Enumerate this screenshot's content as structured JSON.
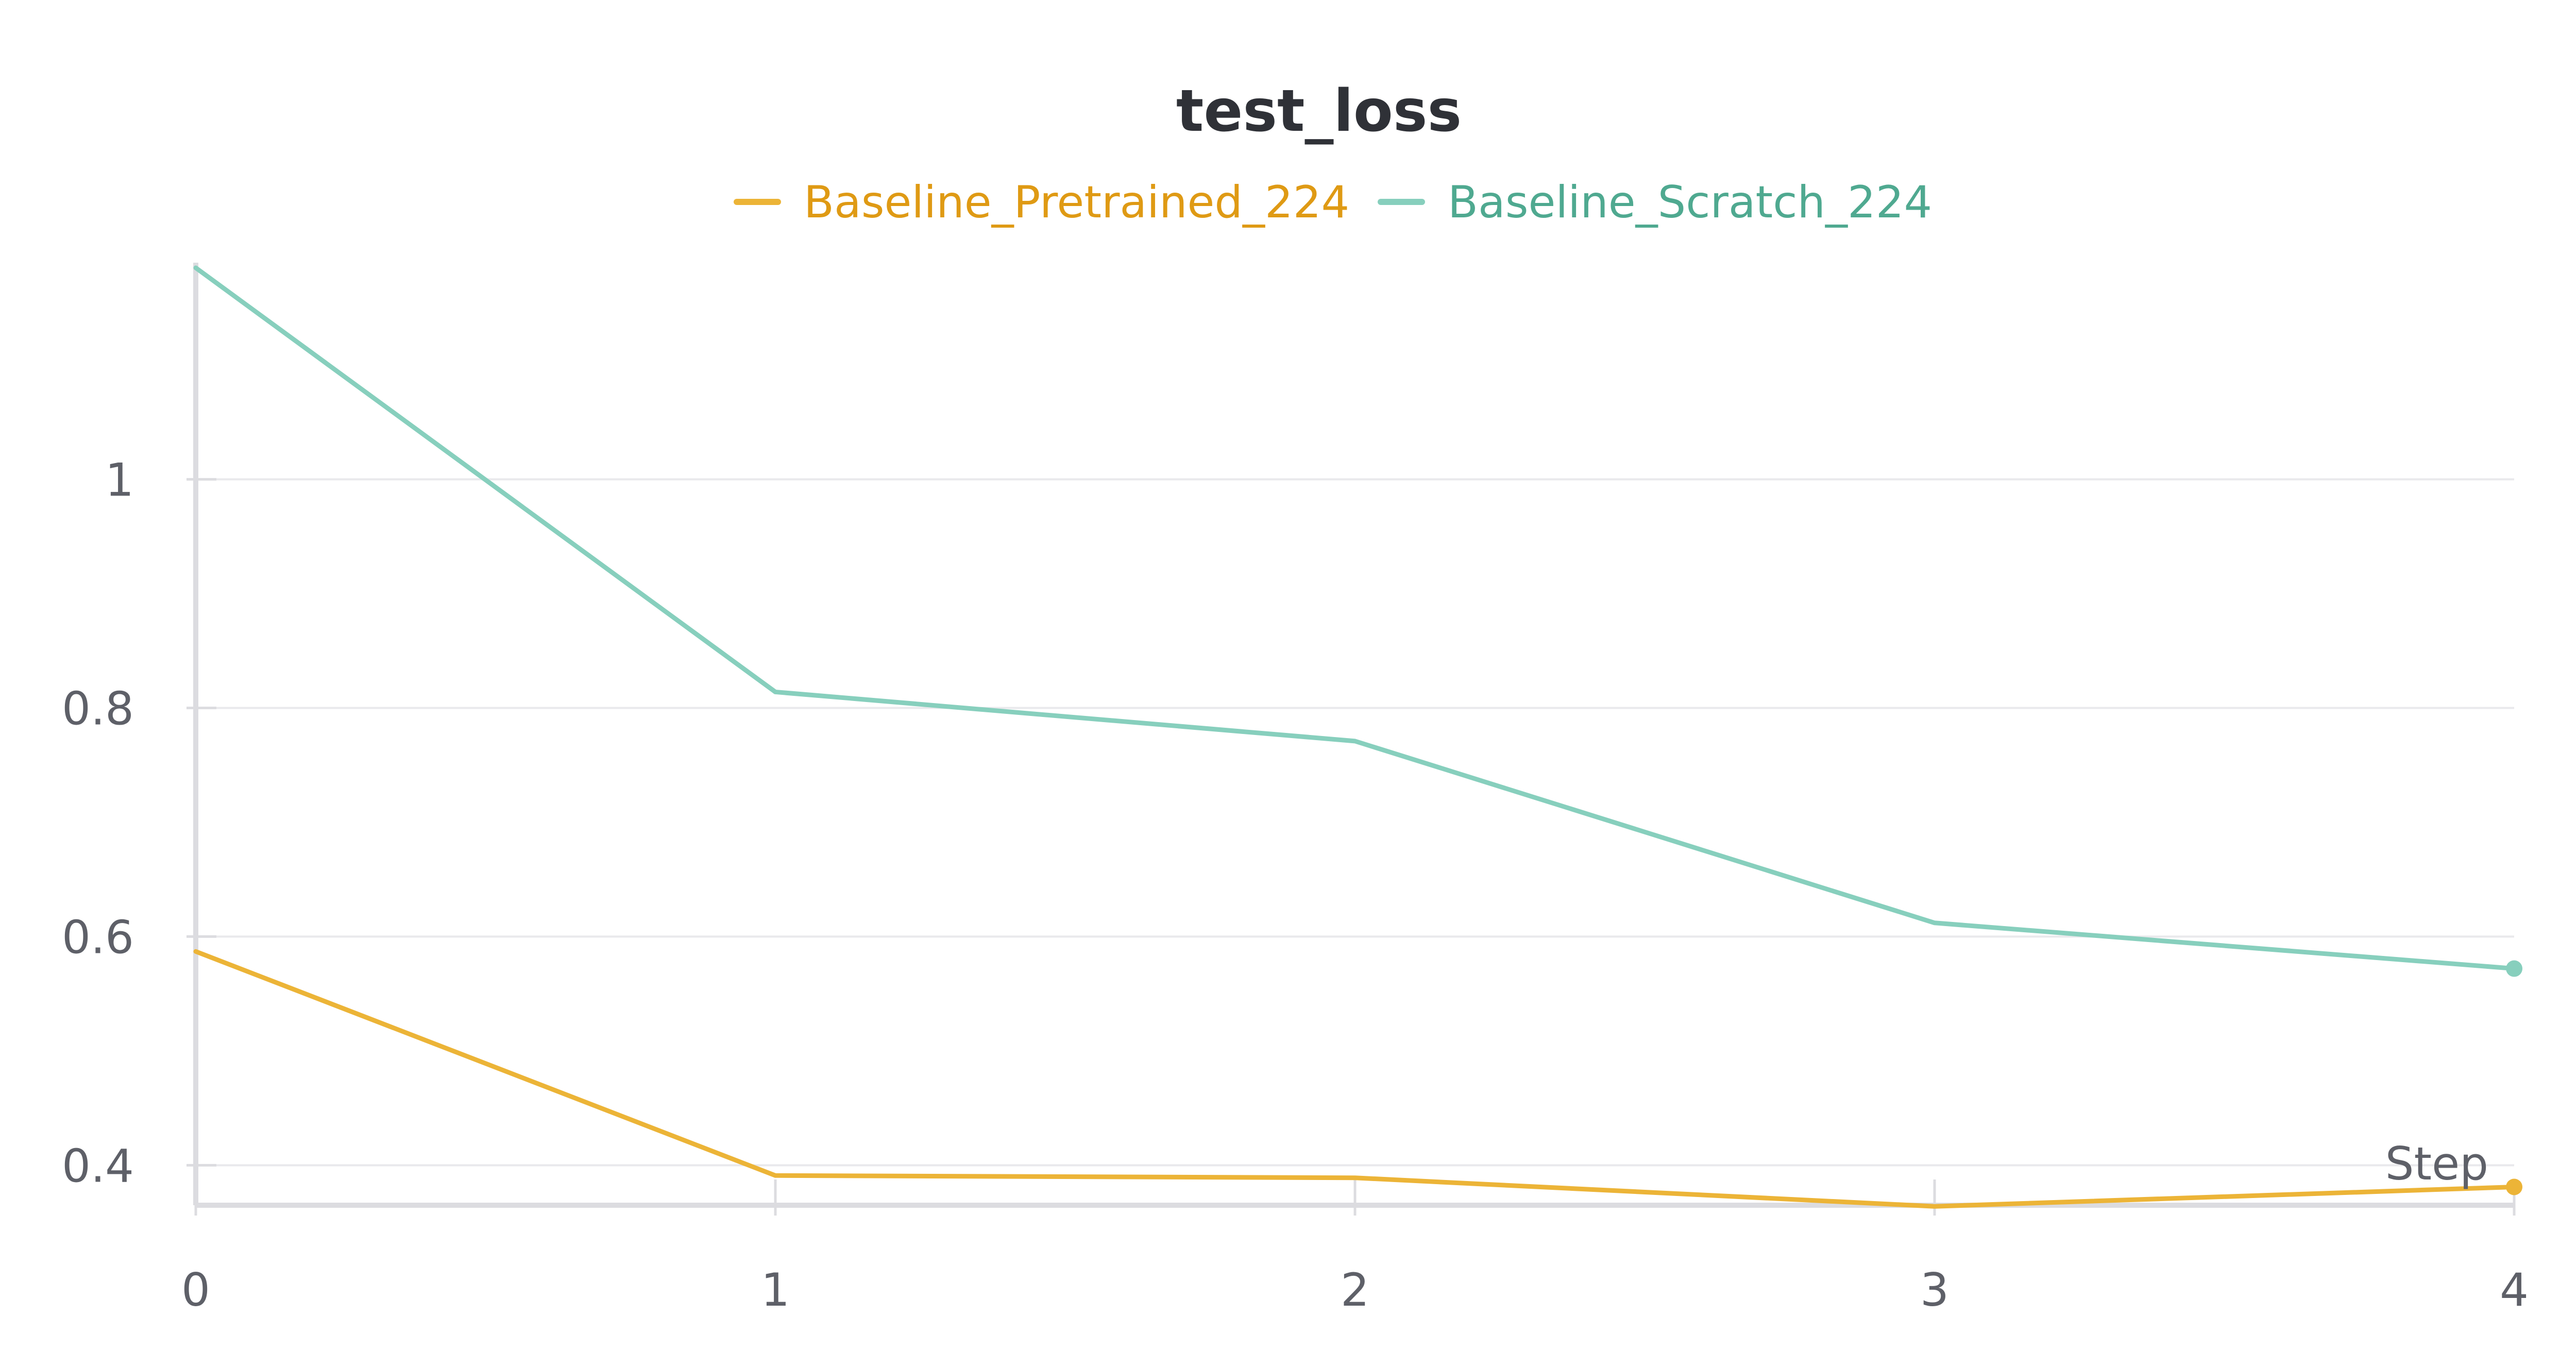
{
  "chart_data": {
    "type": "line",
    "title": "test_loss",
    "xlabel": "Step",
    "ylabel": "",
    "x": [
      0,
      1,
      2,
      3,
      4
    ],
    "xlim": [
      0,
      4
    ],
    "ylim": [
      0.365,
      1.185
    ],
    "y_ticks": [
      0.4,
      0.6,
      0.8,
      1
    ],
    "x_ticks": [
      0,
      1,
      2,
      3,
      4
    ],
    "y_tick_labels": [
      "0.4",
      "0.6",
      "0.8",
      "1"
    ],
    "x_tick_labels": [
      "0",
      "1",
      "2",
      "3",
      "4"
    ],
    "grid": true,
    "legend_placement": "top-center",
    "series": [
      {
        "name": "Baseline_Pretrained_224",
        "color": "#ecb437",
        "legend_color": "#df9a14",
        "values": [
          0.587,
          0.391,
          0.389,
          0.364,
          0.381
        ]
      },
      {
        "name": "Baseline_Scratch_224",
        "color": "#87cfbd",
        "legend_color": "#4fa990",
        "values": [
          1.185,
          0.814,
          0.771,
          0.612,
          0.572
        ]
      }
    ]
  }
}
